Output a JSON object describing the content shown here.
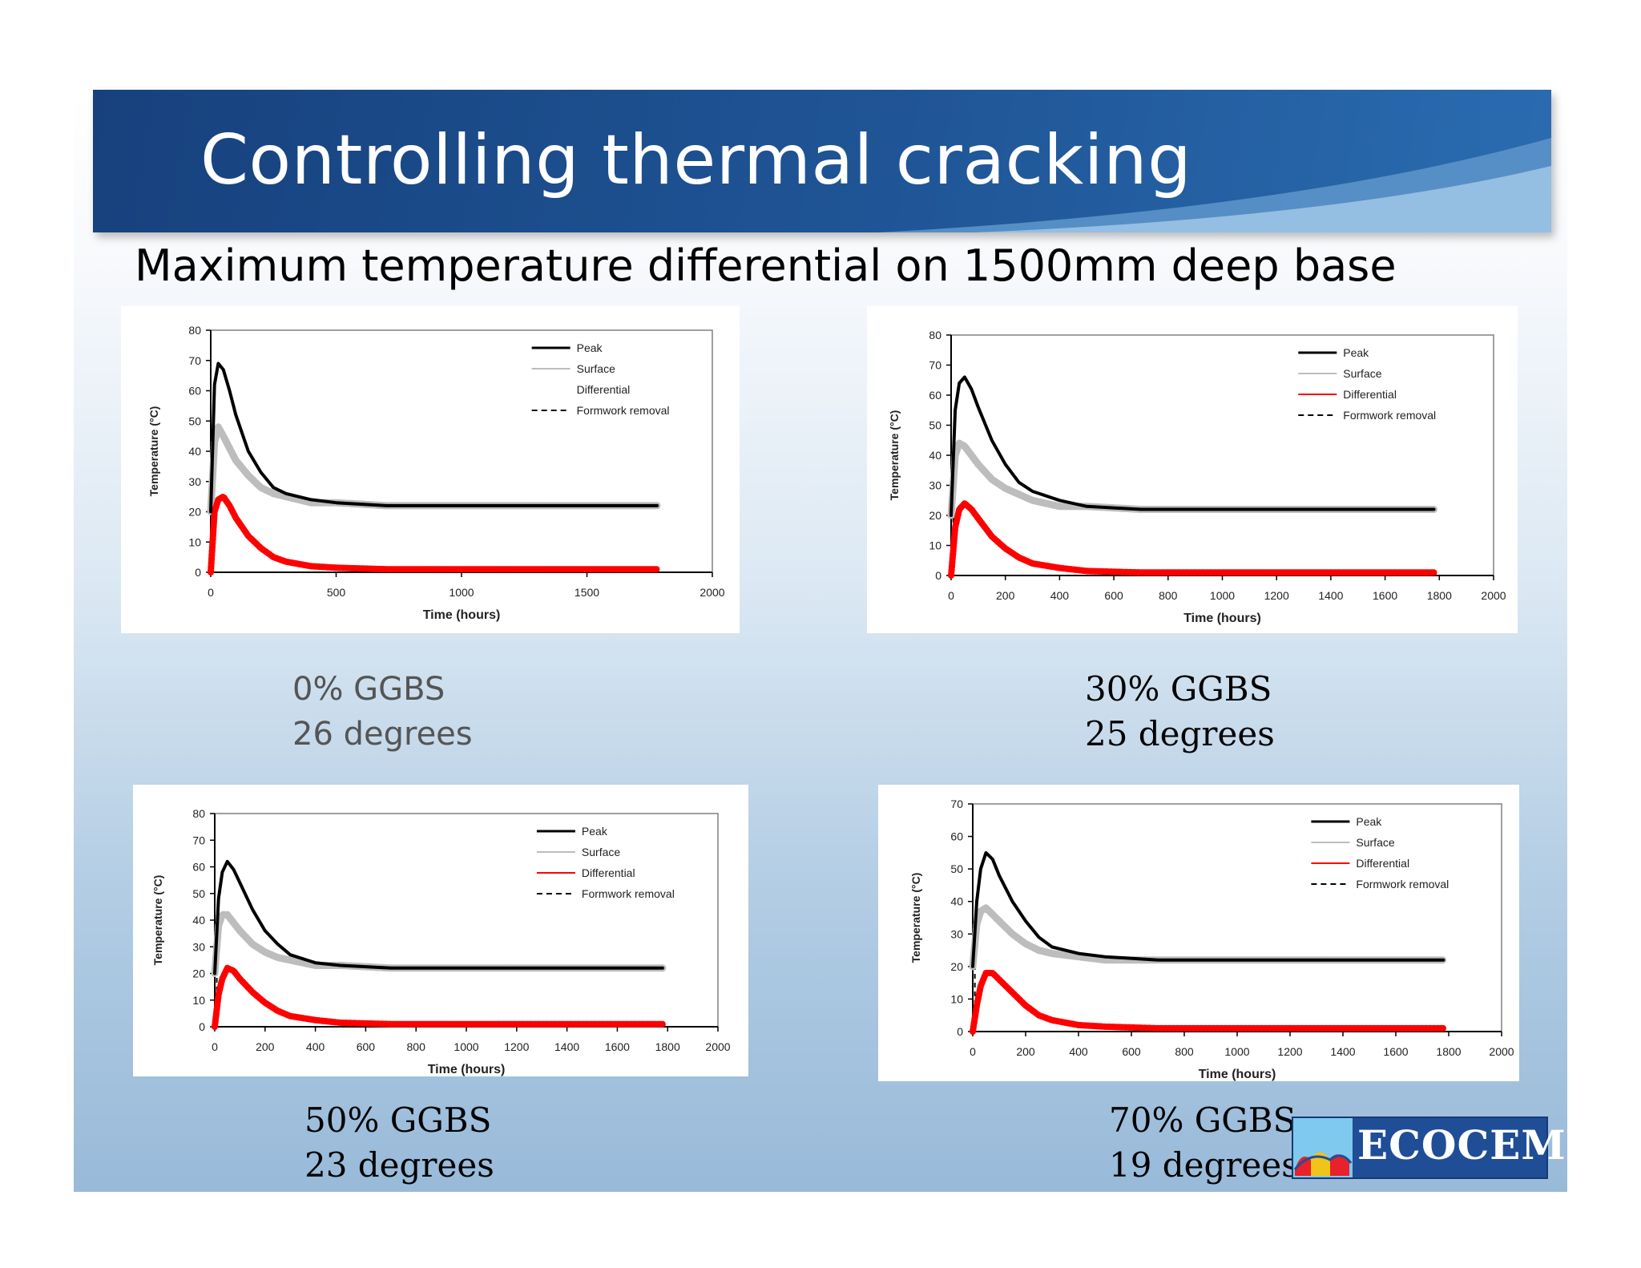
{
  "title": "Controlling thermal cracking",
  "subtitle": "Maximum temperature differential on 1500mm deep base",
  "colors": {
    "peak": "#000000",
    "surface": "#bdbdbd",
    "differential": "#ff0000",
    "formwork": "#000000"
  },
  "charts": [
    {
      "caption": [
        "0% GGBS",
        "26 degrees"
      ],
      "caption_style": "sans",
      "legend": [
        "Peak",
        "Surface",
        "Differential",
        "Formwork removal"
      ]
    },
    {
      "caption": [
        "30% GGBS",
        "25 degrees"
      ],
      "caption_style": "serif",
      "legend": [
        "Peak",
        "Surface",
        "Differential",
        "Formwork removal"
      ]
    },
    {
      "caption": [
        "50% GGBS",
        "23 degrees"
      ],
      "caption_style": "serif",
      "legend": [
        "Peak",
        "Surface",
        "Differential",
        "Formwork removal"
      ]
    },
    {
      "caption": [
        "70% GGBS",
        "19 degrees"
      ],
      "caption_style": "serif",
      "legend": [
        "Peak",
        "Surface",
        "Differential",
        "Formwork removal"
      ]
    }
  ],
  "chart_data": [
    {
      "type": "line",
      "title": "",
      "xlabel": "Time (hours)",
      "ylabel": "Temperature (°C)",
      "xlim": [
        0,
        2000
      ],
      "ylim": [
        0,
        80
      ],
      "xticks": [
        0,
        500,
        1000,
        1500,
        2000
      ],
      "yticks": [
        0,
        10,
        20,
        30,
        40,
        50,
        60,
        70,
        80
      ],
      "legend_position": "top-right",
      "series": [
        {
          "name": "Peak",
          "x": [
            0,
            15,
            30,
            50,
            75,
            100,
            150,
            200,
            250,
            300,
            400,
            500,
            700,
            1000,
            1500,
            1780
          ],
          "y": [
            20,
            62,
            69,
            67,
            60,
            52,
            40,
            33,
            28,
            26,
            24,
            23,
            22,
            22,
            22,
            22
          ]
        },
        {
          "name": "Surface",
          "x": [
            0,
            15,
            30,
            50,
            75,
            100,
            150,
            200,
            250,
            300,
            400,
            500,
            700,
            1000,
            1500,
            1780
          ],
          "y": [
            20,
            43,
            48,
            45,
            41,
            37,
            32,
            28,
            26,
            25,
            23,
            23,
            22,
            22,
            22,
            22
          ]
        },
        {
          "name": "Differential",
          "x": [
            0,
            15,
            30,
            50,
            75,
            100,
            150,
            200,
            250,
            300,
            400,
            500,
            700,
            1000,
            1500,
            1780
          ],
          "y": [
            0,
            20,
            24,
            25,
            22,
            18,
            12,
            8,
            5,
            3.5,
            2,
            1.5,
            1,
            1,
            1,
            1
          ]
        }
      ]
    },
    {
      "type": "line",
      "title": "",
      "xlabel": "Time (hours)",
      "ylabel": "Temperature (°C)",
      "xlim": [
        0,
        2000
      ],
      "ylim": [
        0,
        80
      ],
      "xticks": [
        0,
        200,
        400,
        600,
        800,
        1000,
        1200,
        1400,
        1600,
        1800,
        2000
      ],
      "yticks": [
        0,
        10,
        20,
        30,
        40,
        50,
        60,
        70,
        80
      ],
      "legend_position": "top-right",
      "series": [
        {
          "name": "Peak",
          "x": [
            0,
            15,
            30,
            50,
            75,
            100,
            150,
            200,
            250,
            300,
            400,
            500,
            700,
            1000,
            1500,
            1780
          ],
          "y": [
            20,
            55,
            64,
            66,
            62,
            56,
            45,
            37,
            31,
            28,
            25,
            23,
            22,
            22,
            22,
            22
          ]
        },
        {
          "name": "Surface",
          "x": [
            0,
            15,
            30,
            50,
            75,
            100,
            150,
            200,
            250,
            300,
            400,
            500,
            700,
            1000,
            1500,
            1780
          ],
          "y": [
            20,
            40,
            44,
            43,
            40,
            37,
            32,
            29,
            27,
            25,
            23,
            23,
            22,
            22,
            22,
            22
          ]
        },
        {
          "name": "Differential",
          "x": [
            0,
            15,
            30,
            50,
            75,
            100,
            150,
            200,
            250,
            300,
            400,
            500,
            700,
            1000,
            1500,
            1780
          ],
          "y": [
            0,
            16,
            22,
            24,
            22,
            19,
            13,
            9,
            6,
            4,
            2.5,
            1.5,
            1,
            1,
            1,
            1
          ]
        }
      ]
    },
    {
      "type": "line",
      "title": "",
      "xlabel": "Time (hours)",
      "ylabel": "Temperature (°C)",
      "xlim": [
        0,
        2000
      ],
      "ylim": [
        0,
        80
      ],
      "xticks": [
        0,
        200,
        400,
        600,
        800,
        1000,
        1200,
        1400,
        1600,
        1800,
        2000
      ],
      "yticks": [
        0,
        10,
        20,
        30,
        40,
        50,
        60,
        70,
        80
      ],
      "legend_position": "top-right",
      "series": [
        {
          "name": "Peak",
          "x": [
            0,
            15,
            30,
            50,
            75,
            100,
            150,
            200,
            250,
            300,
            400,
            500,
            700,
            1000,
            1500,
            1780
          ],
          "y": [
            20,
            48,
            58,
            62,
            59,
            54,
            44,
            36,
            31,
            27,
            24,
            23,
            22,
            22,
            22,
            22
          ]
        },
        {
          "name": "Surface",
          "x": [
            0,
            15,
            30,
            50,
            75,
            100,
            150,
            200,
            250,
            300,
            400,
            500,
            700,
            1000,
            1500,
            1780
          ],
          "y": [
            20,
            38,
            42,
            42,
            39,
            36,
            31,
            28,
            26,
            25,
            23,
            23,
            22,
            22,
            22,
            22
          ]
        },
        {
          "name": "Differential",
          "x": [
            0,
            15,
            30,
            50,
            75,
            100,
            150,
            200,
            250,
            300,
            400,
            500,
            700,
            1000,
            1500,
            1780
          ],
          "y": [
            0,
            12,
            18,
            22,
            21,
            18,
            13,
            9,
            6,
            4,
            2.5,
            1.5,
            1,
            1,
            1,
            1
          ]
        }
      ]
    },
    {
      "type": "line",
      "title": "",
      "xlabel": "Time (hours)",
      "ylabel": "Temperature (°C)",
      "xlim": [
        0,
        2000
      ],
      "ylim": [
        0,
        70
      ],
      "xticks": [
        0,
        200,
        400,
        600,
        800,
        1000,
        1200,
        1400,
        1600,
        1800,
        2000
      ],
      "yticks": [
        0,
        10,
        20,
        30,
        40,
        50,
        60,
        70
      ],
      "legend_position": "top-right",
      "series": [
        {
          "name": "Peak",
          "x": [
            0,
            15,
            30,
            50,
            75,
            100,
            150,
            200,
            250,
            300,
            400,
            500,
            700,
            1000,
            1500,
            1780
          ],
          "y": [
            20,
            40,
            50,
            55,
            53,
            48,
            40,
            34,
            29,
            26,
            24,
            23,
            22,
            22,
            22,
            22
          ]
        },
        {
          "name": "Surface",
          "x": [
            0,
            15,
            30,
            50,
            75,
            100,
            150,
            200,
            250,
            300,
            400,
            500,
            700,
            1000,
            1500,
            1780
          ],
          "y": [
            20,
            33,
            37,
            38,
            36,
            34,
            30,
            27,
            25,
            24,
            23,
            22,
            22,
            22,
            22,
            22
          ]
        },
        {
          "name": "Differential",
          "x": [
            0,
            15,
            30,
            50,
            75,
            100,
            150,
            200,
            250,
            300,
            400,
            500,
            700,
            1000,
            1500,
            1780
          ],
          "y": [
            0,
            8,
            14,
            18,
            18,
            16,
            12,
            8,
            5,
            3.5,
            2,
            1.5,
            1,
            1,
            1,
            1
          ]
        }
      ]
    }
  ]
}
